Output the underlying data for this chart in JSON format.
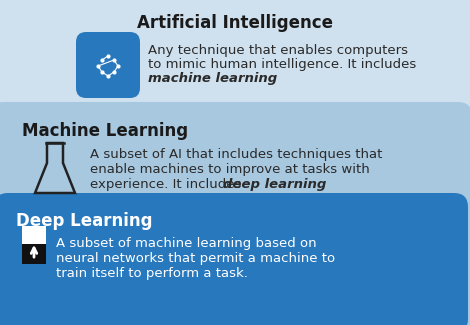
{
  "bg_color": "#cfe0ee",
  "ml_box_color": "#a8c8e0",
  "dl_box_color": "#2878be",
  "ai_title": "Artificial Intelligence",
  "ml_title": "Machine Learning",
  "dl_title": "Deep Learning",
  "ai_text_line1": "Any technique that enables computers",
  "ai_text_line2": "to mimic human intelligence. It includes",
  "ai_text_italic": "machine learning",
  "ml_text_line1": "A subset of AI that includes techniques that",
  "ml_text_line2": "enable machines to improve at tasks with",
  "ml_text_line3a": "experience. It includes ",
  "ml_text_italic": "deep learning",
  "dl_text_line1": "A subset of machine learning based on",
  "dl_text_line2": "neural networks that permit a machine to",
  "dl_text_line3": "train itself to perform a task.",
  "title_dark": "#1a1a1a",
  "title_white": "#ffffff",
  "text_dark": "#2a2a2a",
  "text_white": "#ffffff",
  "icon_blue": "#2878be",
  "icon_dark": "#222222"
}
